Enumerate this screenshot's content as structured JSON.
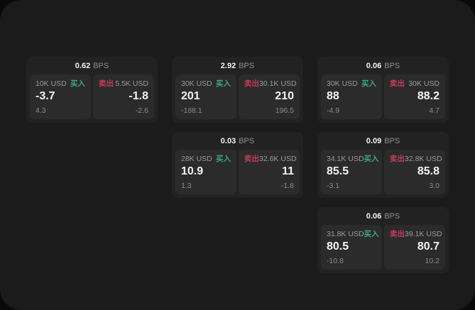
{
  "labels": {
    "unit": "BPS",
    "buy": "买入",
    "sell": "卖出"
  },
  "colors": {
    "buy_green": "#3fa878",
    "sell_red": "#c53d55",
    "window_bg": "#1b1b1c",
    "card_bg": "#222223",
    "panel_bg": "#2b2b2c"
  },
  "cards": [
    {
      "bps": "0.62",
      "buy": {
        "amount": "10K USD",
        "value": "-3.7",
        "delta": "4.3"
      },
      "sell": {
        "amount": "5.5K USD",
        "value": "-1.8",
        "delta": "-2.6"
      }
    },
    {
      "bps": "2.92",
      "buy": {
        "amount": "30K USD",
        "value": "201",
        "delta": "-188.1"
      },
      "sell": {
        "amount": "30.1K USD",
        "value": "210",
        "delta": "196.5"
      }
    },
    {
      "bps": "0.06",
      "buy": {
        "amount": "30K USD",
        "value": "88",
        "delta": "-4.9"
      },
      "sell": {
        "amount": "30K USD",
        "value": "88.2",
        "delta": "4.7"
      }
    },
    {
      "bps": "0.03",
      "buy": {
        "amount": "28K USD",
        "value": "10.9",
        "delta": "1.3"
      },
      "sell": {
        "amount": "32.6K USD",
        "value": "11",
        "delta": "-1.8"
      }
    },
    {
      "bps": "0.09",
      "buy": {
        "amount": "34.1K USD",
        "value": "85.5",
        "delta": "-3.1"
      },
      "sell": {
        "amount": "32.8K USD",
        "value": "85.8",
        "delta": "3.0"
      }
    },
    {
      "bps": "0.06",
      "buy": {
        "amount": "31.8K USD",
        "value": "80.5",
        "delta": "-10.8"
      },
      "sell": {
        "amount": "39.1K USD",
        "value": "80.7",
        "delta": "10.2"
      }
    }
  ]
}
